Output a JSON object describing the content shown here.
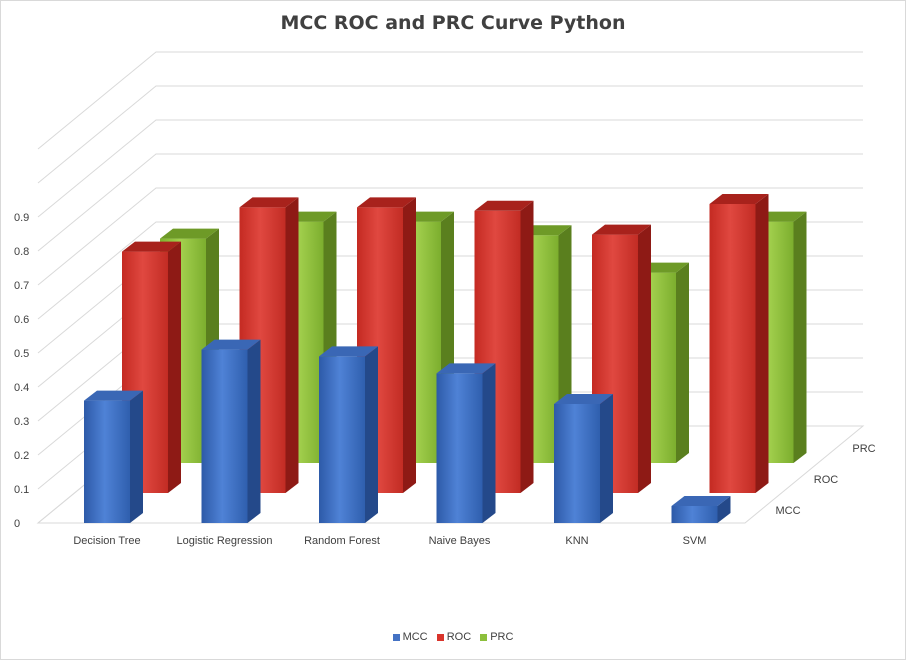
{
  "chart_data": {
    "type": "bar",
    "title": "MCC ROC and PRC Curve Python",
    "categories": [
      "Decision Tree",
      "Logistic Regression",
      "Random Forest",
      "Naive Bayes",
      "KNN",
      "SVM"
    ],
    "series": [
      {
        "name": "MCC",
        "values": [
          0.36,
          0.51,
          0.49,
          0.44,
          0.35,
          0.05
        ]
      },
      {
        "name": "ROC",
        "values": [
          0.71,
          0.84,
          0.84,
          0.83,
          0.76,
          0.85
        ]
      },
      {
        "name": "PRC",
        "values": [
          0.66,
          0.71,
          0.71,
          0.67,
          0.56,
          0.71
        ]
      }
    ],
    "yticks": [
      "0",
      "0.1",
      "0.2",
      "0.3",
      "0.4",
      "0.5",
      "0.6",
      "0.7",
      "0.8",
      "0.9"
    ],
    "ylim": [
      0,
      1.1
    ],
    "depth_labels": [
      "MCC",
      "ROC",
      "PRC"
    ],
    "grid": true,
    "legend_position": "bottom",
    "colors": {
      "MCC": "#4472c4",
      "ROC": "#d9342b",
      "PRC": "#8cbf3c"
    }
  }
}
